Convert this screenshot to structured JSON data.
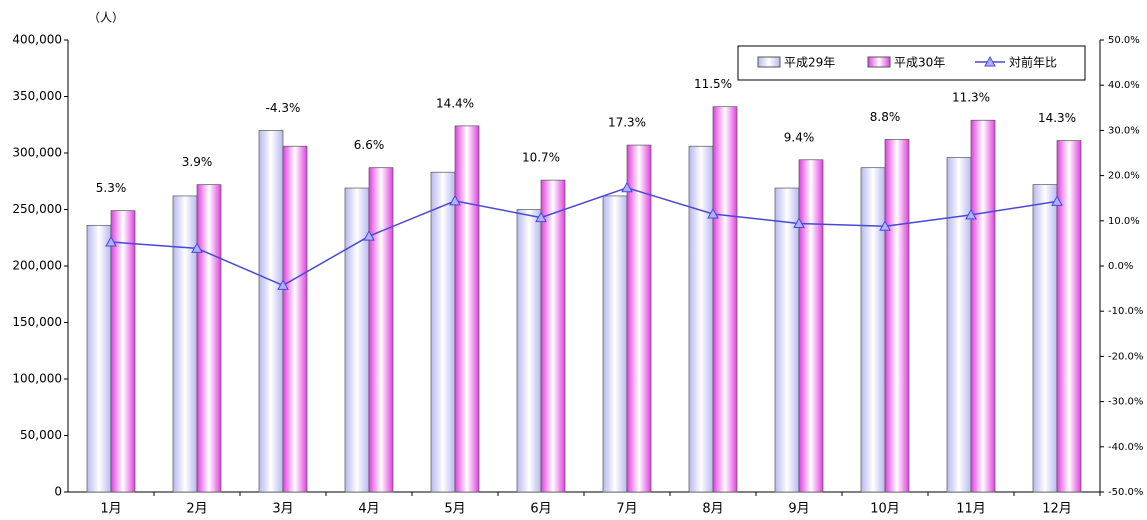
{
  "chart_data": {
    "type": "bar-line",
    "y_unit_label": "（人）",
    "categories": [
      "1月",
      "2月",
      "3月",
      "4月",
      "5月",
      "6月",
      "7月",
      "8月",
      "9月",
      "10月",
      "11月",
      "12月"
    ],
    "series": [
      {
        "name": "平成29年",
        "color": "#b8b8f0",
        "values": [
          236000,
          262000,
          320000,
          269000,
          283000,
          250000,
          262000,
          306000,
          269000,
          287000,
          296000,
          272000
        ]
      },
      {
        "name": "平成30年",
        "color": "#e040e0",
        "values": [
          249000,
          272000,
          306000,
          287000,
          324000,
          276000,
          307000,
          341000,
          294000,
          312000,
          329000,
          311000
        ]
      },
      {
        "name": "対前年比",
        "color": "#4848d8",
        "axis": "y2",
        "values": [
          5.3,
          3.9,
          -4.3,
          6.6,
          14.4,
          10.7,
          17.3,
          11.5,
          9.4,
          8.8,
          11.3,
          14.3
        ],
        "value_labels": [
          "5.3%",
          "3.9%",
          "-4.3%",
          "6.6%",
          "14.4%",
          "10.7%",
          "17.3%",
          "11.5%",
          "9.4%",
          "8.8%",
          "11.3%",
          "14.3%"
        ]
      }
    ],
    "ylim": [
      0,
      400000
    ],
    "yticks": [
      0,
      {
        "value": 50000,
        "label": "50,000"
      },
      {
        "value": 100000,
        "label": "100,000"
      },
      {
        "value": 150000,
        "label": "150,000"
      },
      {
        "value": 200000,
        "label": "200,000"
      },
      {
        "value": 250000,
        "label": "250,000"
      },
      {
        "value": 300000,
        "label": "300,000"
      },
      {
        "value": 350000,
        "label": "350,000"
      },
      {
        "value": 400000,
        "label": "400,000"
      }
    ],
    "y2lim": [
      -50,
      50
    ],
    "y2ticks": [
      {
        "value": -50,
        "label": "-50.0%"
      },
      {
        "value": -40,
        "label": "-40.0%"
      },
      {
        "value": -30,
        "label": "-30.0%"
      },
      {
        "value": -20,
        "label": "-20.0%"
      },
      {
        "value": -10,
        "label": "-10.0%"
      },
      {
        "value": 0,
        "label": "0.0%"
      },
      {
        "value": 10,
        "label": "10.0%"
      },
      {
        "value": 20,
        "label": "20.0%"
      },
      {
        "value": 30,
        "label": "30.0%"
      },
      {
        "value": 40,
        "label": "40.0%"
      },
      {
        "value": 50,
        "label": "50.0%"
      }
    ],
    "legend": "top-right"
  }
}
